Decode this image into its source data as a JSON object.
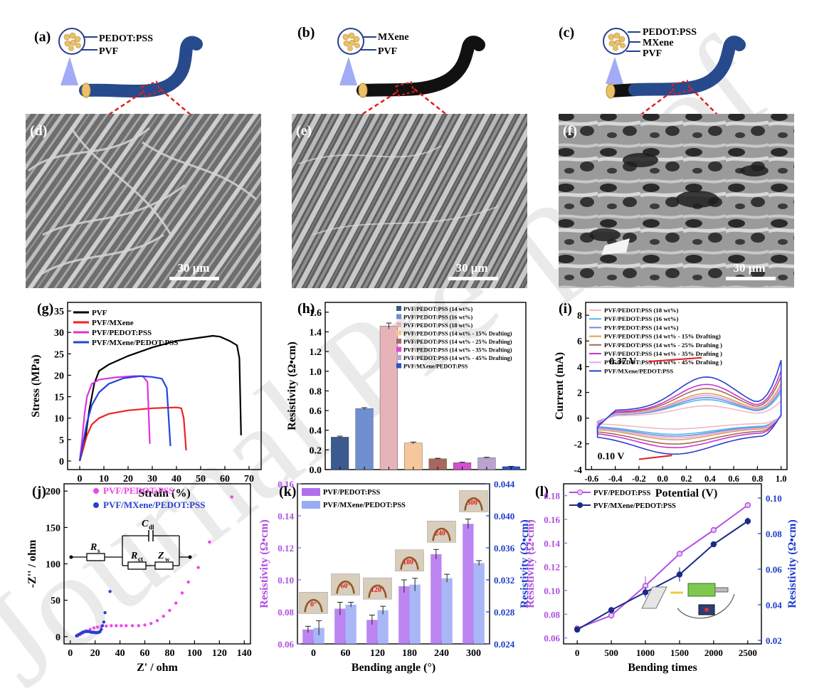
{
  "watermark": "Journal Pre-proof",
  "panels": {
    "a": {
      "label": "(a)",
      "layers": [
        "PEDOT:PSS",
        "PVF"
      ]
    },
    "b": {
      "label": "(b)",
      "layers": [
        "MXene",
        "PVF"
      ]
    },
    "c": {
      "label": "(c)",
      "layers": [
        "PEDOT:PSS",
        "MXene",
        "PVF"
      ]
    },
    "d": {
      "label": "(d)",
      "scale": "30 μm"
    },
    "e": {
      "label": "(e)",
      "scale": "30 μm"
    },
    "f": {
      "label": "(f)",
      "scale": "30 μm"
    },
    "g": {
      "label": "(g)"
    },
    "h": {
      "label": "(h)"
    },
    "i": {
      "label": "(i)"
    },
    "j": {
      "label": "(j)"
    },
    "k": {
      "label": "(k)"
    },
    "l": {
      "label": "(l)"
    }
  },
  "colors": {
    "pvf_blue": "#274a8c",
    "mxene_black": "#111111",
    "dashed_red": "#e02020",
    "purple": "#b14fe0",
    "blue": "#1f3ccf"
  },
  "chart_data": [
    {
      "panel": "g",
      "type": "line",
      "xlabel": "Strain (%)",
      "ylabel": "Stress (MPa)",
      "xlim": [
        -5,
        75
      ],
      "ylim": [
        -2,
        37
      ],
      "xticks": [
        0,
        10,
        20,
        30,
        40,
        50,
        60,
        70
      ],
      "yticks": [
        0,
        5,
        10,
        15,
        20,
        25,
        30,
        35
      ],
      "legend": "top-left",
      "series": [
        {
          "name": "PVF",
          "color": "#000000",
          "points": [
            [
              0,
              0
            ],
            [
              2,
              4
            ],
            [
              4,
              12
            ],
            [
              6,
              18
            ],
            [
              8,
              21
            ],
            [
              12,
              22.5
            ],
            [
              20,
              24.5
            ],
            [
              30,
              26.5
            ],
            [
              40,
              28
            ],
            [
              50,
              28.8
            ],
            [
              55,
              29.2
            ],
            [
              58,
              29
            ],
            [
              62,
              28
            ],
            [
              65,
              27
            ],
            [
              66,
              24
            ],
            [
              66.7,
              6
            ]
          ]
        },
        {
          "name": "PVF/MXene",
          "color": "#ee2222",
          "points": [
            [
              0,
              0
            ],
            [
              1,
              2
            ],
            [
              3,
              6
            ],
            [
              5,
              8.5
            ],
            [
              8,
              10
            ],
            [
              12,
              11
            ],
            [
              20,
              11.8
            ],
            [
              30,
              12.3
            ],
            [
              40,
              12.5
            ],
            [
              42,
              12.3
            ],
            [
              43,
              10
            ],
            [
              44,
              2.5
            ]
          ]
        },
        {
          "name": "PVF/PEDOT:PSS",
          "color": "#dd33dd",
          "points": [
            [
              0,
              0
            ],
            [
              1,
              5
            ],
            [
              2,
              11
            ],
            [
              3,
              15
            ],
            [
              5,
              18
            ],
            [
              8,
              19
            ],
            [
              15,
              19.5
            ],
            [
              22,
              19.8
            ],
            [
              26,
              19.8
            ],
            [
              28,
              18.5
            ],
            [
              29,
              4
            ]
          ]
        },
        {
          "name": "PVF/MXene/PEDOT:PSS",
          "color": "#2244dd",
          "points": [
            [
              0,
              0
            ],
            [
              1,
              3
            ],
            [
              3,
              9
            ],
            [
              5,
              13
            ],
            [
              8,
              16
            ],
            [
              12,
              18
            ],
            [
              18,
              19.3
            ],
            [
              25,
              19.8
            ],
            [
              30,
              19.6
            ],
            [
              34,
              19.2
            ],
            [
              36,
              17
            ],
            [
              37.5,
              3.5
            ]
          ]
        }
      ]
    },
    {
      "panel": "h",
      "type": "bar",
      "xlabel": "",
      "ylabel": "Resistivity (Ω•cm)",
      "ylim": [
        0,
        1.7
      ],
      "yticks": [
        0.0,
        0.2,
        0.4,
        0.6,
        0.8,
        1.0,
        1.2,
        1.4,
        1.6
      ],
      "legend": "top-right",
      "categories": [
        "PVF/PEDOT:PSS (14 wt%)",
        "PVF/PEDOT:PSS (16 wt%)",
        "PVF/PEDOT:PSS (18 wt%)",
        "PVF/PEDOT:PSS (14 wt% - 15% Drafting)",
        "PVF/PEDOT:PSS (14 wt% - 25% Drafting)",
        "PVF/PEDOT:PSS (14 wt% - 35% Drafting)",
        "PVF/PEDOT:PSS (14 wt% - 45% Drafting)",
        "PVF/MXene/PEDOT:PSS"
      ],
      "values": [
        0.33,
        0.62,
        1.46,
        0.27,
        0.11,
        0.07,
        0.12,
        0.03
      ],
      "errors": [
        0.01,
        0.01,
        0.03,
        0.01,
        0.005,
        0.005,
        0.005,
        0.003
      ],
      "colors": [
        "#3b5a8f",
        "#6f8fd0",
        "#e6b3b8",
        "#f5c79a",
        "#a8685d",
        "#d44fd0",
        "#b9a4d0",
        "#2b50cc"
      ]
    },
    {
      "panel": "i",
      "type": "line",
      "xlabel": "Potential (V)",
      "ylabel": "Current (mA)",
      "xlim": [
        -0.65,
        1.05
      ],
      "ylim": [
        -4,
        9
      ],
      "xticks": [
        -0.6,
        -0.4,
        -0.2,
        0.0,
        0.2,
        0.4,
        0.6,
        0.8,
        1.0
      ],
      "yticks": [
        -4,
        -2,
        0,
        2,
        4,
        6,
        8
      ],
      "legend": "top-left",
      "annotations": [
        "0.37 V",
        "0.10 V"
      ],
      "series": [
        {
          "name": "PVF/PEDOT:PSS (18 wt%)",
          "color": "#f5b7c4",
          "scale": 0.3
        },
        {
          "name": "PVF/PEDOT:PSS (16 wt%)",
          "color": "#4fb8ee",
          "scale": 0.45
        },
        {
          "name": "PVF/PEDOT:PSS (14 wt%)",
          "color": "#6f8fd0",
          "scale": 0.5
        },
        {
          "name": "PVF/PEDOT:PSS (14 wt% - 15% Drafting)",
          "color": "#e0a050",
          "scale": 0.6
        },
        {
          "name": "PVF/PEDOT:PSS (14 wt% - 25% Drafting )",
          "color": "#a06a5a",
          "scale": 0.72
        },
        {
          "name": "PVF/PEDOT:PSS (14 wt% - 35% Drafting )",
          "color": "#cc33cc",
          "scale": 0.82
        },
        {
          "name": "PVF/PEDOT:PSS (14 wt% - 45% Drafting )",
          "color": "#e7a7ee",
          "scale": 0.55
        },
        {
          "name": "PVF/MXene/PEDOT:PSS",
          "color": "#2a3fcf",
          "scale": 1.0
        }
      ]
    },
    {
      "panel": "j",
      "type": "scatter",
      "xlabel": "Z' / ohm",
      "ylabel": "-Z'' / ohm",
      "xlim": [
        -5,
        145
      ],
      "ylim": [
        -10,
        210
      ],
      "xticks": [
        0,
        20,
        40,
        60,
        80,
        100,
        120,
        140
      ],
      "yticks": [
        0,
        50,
        100,
        150,
        200
      ],
      "legend": "top-right",
      "circuit": {
        "elements": [
          "R",
          "s",
          "C",
          "dl",
          "R",
          "ct",
          "Z",
          "w"
        ]
      },
      "series": [
        {
          "name": "PVF/PEDOT:PSS",
          "color": "#ee44ee",
          "points": [
            [
              6,
              1
            ],
            [
              8,
              3
            ],
            [
              10,
              5
            ],
            [
              13,
              8
            ],
            [
              16,
              10
            ],
            [
              19,
              12
            ],
            [
              22,
              13
            ],
            [
              25,
              14
            ],
            [
              29,
              14.5
            ],
            [
              33,
              15
            ],
            [
              37,
              15
            ],
            [
              41,
              15
            ],
            [
              45,
              15
            ],
            [
              50,
              15
            ],
            [
              55,
              15
            ],
            [
              60,
              16
            ],
            [
              65,
              18
            ],
            [
              70,
              22
            ],
            [
              75,
              28
            ],
            [
              80,
              36
            ],
            [
              85,
              46
            ],
            [
              90,
              60
            ],
            [
              95,
              75
            ],
            [
              103,
              95
            ],
            [
              112,
              130
            ],
            [
              130,
              192
            ]
          ]
        },
        {
          "name": "PVF/MXene/PEDOT:PSS",
          "color": "#2a3fcf",
          "points": [
            [
              5,
              1
            ],
            [
              6,
              2
            ],
            [
              7,
              3
            ],
            [
              8,
              4
            ],
            [
              9,
              5
            ],
            [
              10,
              6
            ],
            [
              11,
              6.5
            ],
            [
              12,
              7
            ],
            [
              13,
              7
            ],
            [
              14,
              7
            ],
            [
              15,
              7
            ],
            [
              16,
              6.5
            ],
            [
              17,
              6
            ],
            [
              18,
              6
            ],
            [
              19,
              6
            ],
            [
              20,
              5.5
            ],
            [
              21,
              5.5
            ],
            [
              22,
              5.5
            ],
            [
              23,
              6
            ],
            [
              24,
              7
            ],
            [
              25,
              10
            ],
            [
              26,
              15
            ],
            [
              27,
              20
            ],
            [
              28,
              33
            ],
            [
              32,
              62
            ]
          ]
        }
      ]
    },
    {
      "panel": "k",
      "type": "bar",
      "xlabel": "Bending angle (°)",
      "ylabel": "Resistivity (Ω•cm)",
      "ylabel2": "Resistivity (Ω•cm)",
      "categories": [
        "0",
        "60",
        "120",
        "180",
        "240",
        "300"
      ],
      "ylim": [
        0.06,
        0.16
      ],
      "yticks": [
        0.06,
        0.08,
        0.1,
        0.12,
        0.14,
        0.16
      ],
      "ylim2": [
        0.024,
        0.044
      ],
      "yticks2": [
        0.024,
        0.028,
        0.032,
        0.036,
        0.04,
        0.044
      ],
      "legend": "top-left",
      "photo_labels": [
        "0°",
        "60°",
        "120°",
        "180°",
        "240°",
        "300°"
      ],
      "series": [
        {
          "name": "PVF/PEDOT:PSS",
          "color": "#b070ee",
          "axis": "left",
          "values": [
            0.069,
            0.082,
            0.075,
            0.096,
            0.116,
            0.135
          ],
          "errors": [
            0.002,
            0.004,
            0.003,
            0.004,
            0.003,
            0.003
          ]
        },
        {
          "name": "PVF/MXene/PEDOT:PSS",
          "color": "#9aaaf5",
          "axis": "right",
          "values": [
            0.026,
            0.0289,
            0.0282,
            0.0314,
            0.0322,
            0.0341
          ],
          "errors": [
            0.0009,
            0.0003,
            0.0005,
            0.0008,
            0.0005,
            0.0003
          ]
        }
      ]
    },
    {
      "panel": "l",
      "type": "line",
      "xlabel": "Bending times",
      "ylabel": "Resistivity (Ω•cm)",
      "ylabel2": "Resistivity (Ω•cm)",
      "xlim": [
        -200,
        2700
      ],
      "xticks": [
        0,
        500,
        1000,
        1500,
        2000,
        2500
      ],
      "ylim": [
        0.055,
        0.19
      ],
      "yticks": [
        0.06,
        0.08,
        0.1,
        0.12,
        0.14,
        0.16,
        0.18
      ],
      "ylim2": [
        0.018,
        0.108
      ],
      "yticks2": [
        0.02,
        0.04,
        0.06,
        0.08,
        0.1
      ],
      "legend": "top-left",
      "series": [
        {
          "name": "PVF/PEDOT:PSS",
          "color": "#b14fe0",
          "axis": "left",
          "x": [
            0,
            500,
            1000,
            1500,
            2000,
            2500
          ],
          "values": [
            0.068,
            0.079,
            0.104,
            0.131,
            0.151,
            0.172
          ],
          "errors": [
            0.001,
            0.003,
            0.008,
            0.002,
            0.001,
            0.002
          ]
        },
        {
          "name": "PVF/MXene/PEDOT:PSS",
          "color": "#1a2a8a",
          "axis": "right",
          "x": [
            0,
            500,
            1000,
            1500,
            2000,
            2500
          ],
          "values": [
            0.026,
            0.037,
            0.047,
            0.057,
            0.074,
            0.087
          ],
          "errors": [
            0.001,
            0.001,
            0.003,
            0.004,
            0.001,
            0.002
          ]
        }
      ]
    }
  ]
}
